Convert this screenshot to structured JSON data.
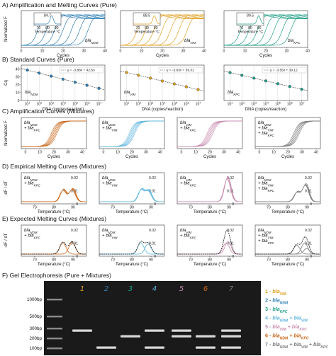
{
  "colors": {
    "ndm": "#2f7fb5",
    "vim": "#e0a020",
    "kpc": "#1f9e86",
    "ndm_vim": "#5fb6de",
    "vim_kpc": "#c78cb0",
    "ndm_kpc": "#c8661a",
    "all": "#7a7a7a",
    "fit": "#333333"
  },
  "sections": {
    "A": "A) Amplification and Melting Curves (Pure)",
    "B": "B) Standard Curves (Pure)",
    "C": "C) Amplification Curves (Mixtures)",
    "D": "D) Empirical Melting Curves (Mixtures)",
    "E": "E) Expected Melting Curves (Mixtures)",
    "F": "F) Gel Electrophoresis (Pure + Mixtures)"
  },
  "axes": {
    "cycles": "Cycles",
    "normalized_f": "Normalized F",
    "cq": "Cq",
    "dna": "DNA (copies/reaction)",
    "temperature": "Temperature (°C)",
    "dfdt": "-dF / dT",
    "inset_temperature": "Temperature °C"
  },
  "chart_data": [
    {
      "type": "line",
      "panel": "A",
      "target": "blaNDM",
      "gene": "bla",
      "sub": "NDM",
      "x": [
        0,
        10,
        20,
        30,
        40
      ],
      "xlim": [
        0,
        40
      ],
      "ylabel": "Normalized F",
      "xlabel": "Cycles",
      "melt_peak": 84.7,
      "inset_ticks": [
        70,
        80,
        90
      ],
      "curves": 7
    },
    {
      "type": "line",
      "panel": "A",
      "target": "blaVIM",
      "gene": "bla",
      "sub": "VIM",
      "x": [
        0,
        10,
        20,
        30,
        40
      ],
      "xlim": [
        0,
        40
      ],
      "xlabel": "Cycles",
      "melt_peak": 88.5,
      "inset_ticks": [
        70,
        80,
        90
      ],
      "curves": 7
    },
    {
      "type": "line",
      "panel": "A",
      "target": "blaKPC",
      "gene": "bla",
      "sub": "KPC",
      "x": [
        0,
        10,
        20,
        30,
        40
      ],
      "xlim": [
        0,
        40
      ],
      "xlabel": "Cycles",
      "melt_peak": 89.5,
      "inset_ticks": [
        70,
        80,
        90
      ],
      "curves": 7
    },
    {
      "type": "scatter",
      "panel": "B",
      "target": "blaNDM",
      "gene": "bla",
      "sub": "NDM",
      "equation": "y = -3.88x + 42.63",
      "slope": -3.88,
      "intercept": 42.63,
      "x_log10": [
        1,
        2,
        3,
        4,
        5,
        6,
        7
      ],
      "ylim": [
        0,
        40
      ],
      "yticks": [
        0,
        10,
        20,
        30,
        40
      ],
      "ylabel": "Cq",
      "xlabel": "DNA (copies/reaction)"
    },
    {
      "type": "scatter",
      "panel": "B",
      "target": "blaVIM",
      "gene": "bla",
      "sub": "VIM",
      "equation": "y = -3.63x + 39.31",
      "slope": -3.63,
      "intercept": 39.31,
      "x_log10": [
        1,
        2,
        3,
        4,
        5,
        6,
        7
      ],
      "xlabel": "DNA (copies/reaction)"
    },
    {
      "type": "scatter",
      "panel": "B",
      "target": "blaKPC",
      "gene": "bla",
      "sub": "KPC",
      "equation": "y = -3.55x + 39.12",
      "slope": -3.55,
      "intercept": 39.12,
      "x_log10": [
        1,
        2,
        3,
        4,
        5,
        6,
        7
      ],
      "xlabel": "DNA (copies/reaction)"
    },
    {
      "type": "line",
      "panel": "C",
      "labels": [
        [
          {
            "g": "bla",
            "s": "NDM"
          }
        ],
        [
          {
            "g": "+ bla",
            "s": "KPC"
          }
        ]
      ],
      "color": "ndm_kpc",
      "xticks": [
        0,
        10,
        20,
        30,
        40
      ],
      "ylabel": "Normalized F",
      "xlabel": "Cycles"
    },
    {
      "type": "line",
      "panel": "C",
      "labels": [
        [
          {
            "g": "bla",
            "s": "NDM"
          }
        ],
        [
          {
            "g": "+ bla",
            "s": "VIM"
          }
        ]
      ],
      "color": "ndm_vim",
      "xticks": [
        0,
        10,
        20,
        30,
        40
      ],
      "xlabel": "Cycles"
    },
    {
      "type": "line",
      "panel": "C",
      "labels": [
        [
          {
            "g": "bla",
            "s": "VIM"
          }
        ],
        [
          {
            "g": "+ bla",
            "s": "KPC"
          }
        ]
      ],
      "color": "vim_kpc",
      "xticks": [
        0,
        10,
        20,
        30,
        40
      ],
      "xlabel": "Cycles"
    },
    {
      "type": "line",
      "panel": "C",
      "labels": [
        [
          {
            "g": "bla",
            "s": "NDM"
          }
        ],
        [
          {
            "g": "+ bla",
            "s": "VIM"
          }
        ],
        [
          {
            "g": "+ bla",
            "s": "KPC"
          }
        ]
      ],
      "color": "all",
      "xticks": [
        0,
        10,
        20,
        30,
        40
      ],
      "xlabel": "Cycles"
    },
    {
      "type": "line",
      "panel": "D",
      "labels": [
        [
          {
            "g": "bla",
            "s": "NDM"
          }
        ],
        [
          {
            "g": "+ bla",
            "s": "KPC"
          }
        ]
      ],
      "color": "ndm_kpc",
      "xticks": [
        70,
        80,
        90
      ],
      "yticks": [
        0,
        0.01,
        0.02
      ],
      "ylabel": "-dF / dT",
      "xlabel": "Temperature (°C)"
    },
    {
      "type": "line",
      "panel": "D",
      "labels": [
        [
          {
            "g": "bla",
            "s": "NDM"
          }
        ],
        [
          {
            "g": "+ bla",
            "s": "VIM"
          }
        ]
      ],
      "color": "ndm_vim",
      "xticks": [
        70,
        80,
        90
      ],
      "yticks": [
        0,
        0.01,
        0.02
      ],
      "xlabel": "Temperature (°C)"
    },
    {
      "type": "line",
      "panel": "D",
      "labels": [
        [
          {
            "g": "bla",
            "s": "VIM"
          }
        ],
        [
          {
            "g": "+ bla",
            "s": "KPC"
          }
        ]
      ],
      "color": "vim_kpc",
      "xticks": [
        70,
        80,
        90
      ],
      "yticks": [
        0,
        0.01,
        0.02
      ],
      "xlabel": "Temperature (°C)"
    },
    {
      "type": "line",
      "panel": "D",
      "labels": [
        [
          {
            "g": "bla",
            "s": "NDM"
          }
        ],
        [
          {
            "g": "+ bla",
            "s": "VIM"
          }
        ],
        [
          {
            "g": "+ bla",
            "s": "KPC"
          }
        ]
      ],
      "color": "all",
      "xticks": [
        70,
        80,
        90
      ],
      "yticks": [
        0,
        0.01,
        0.02
      ],
      "xlabel": "Temperature (°C)"
    },
    {
      "type": "line",
      "panel": "E",
      "labels": [
        [
          {
            "g": "bla",
            "s": "NDM"
          }
        ],
        [
          {
            "g": "+ bla",
            "s": "KPC"
          }
        ]
      ],
      "color": "ndm_kpc",
      "xticks": [
        70,
        80,
        90
      ],
      "yticks": [
        0,
        0.01,
        0.02
      ],
      "ylabel": "-dF / dT",
      "xlabel": "Temperature (°C)"
    },
    {
      "type": "line",
      "panel": "E",
      "labels": [
        [
          {
            "g": "bla",
            "s": "NDM"
          }
        ],
        [
          {
            "g": "+ bla",
            "s": "VIM"
          }
        ]
      ],
      "color": "ndm_vim",
      "xticks": [
        70,
        80,
        90
      ],
      "yticks": [
        0,
        0.01,
        0.02
      ],
      "xlabel": "Temperature (°C)"
    },
    {
      "type": "line",
      "panel": "E",
      "labels": [
        [
          {
            "g": "bla",
            "s": "VIM"
          }
        ],
        [
          {
            "g": "+ bla",
            "s": "KPC"
          }
        ]
      ],
      "color": "vim_kpc",
      "xticks": [
        70,
        80,
        90
      ],
      "yticks": [
        0,
        0.01,
        0.02
      ],
      "xlabel": "Temperature (°C)"
    },
    {
      "type": "line",
      "panel": "E",
      "labels": [
        [
          {
            "g": "bla",
            "s": "NDM"
          }
        ],
        [
          {
            "g": "+ bla",
            "s": "VIM"
          }
        ],
        [
          {
            "g": "+ bla",
            "s": "KPC"
          }
        ]
      ],
      "color": "all",
      "xticks": [
        70,
        80,
        90
      ],
      "yticks": [
        0,
        0.01,
        0.02
      ],
      "xlabel": "Temperature (°C)"
    }
  ],
  "gel": {
    "ladder": [
      "1000bp",
      "500bp",
      "300bp",
      "200bp",
      "100bp"
    ],
    "lanes": [
      "1",
      "2",
      "3",
      "4",
      "5",
      "6",
      "7"
    ],
    "lane_colors": [
      "vim",
      "ndm",
      "kpc",
      "ndm_vim",
      "vim_kpc",
      "ndm_kpc",
      "all"
    ],
    "legend": [
      {
        "num": "1 - ",
        "parts": [
          {
            "g": "bla",
            "s": "VIM"
          }
        ],
        "color": "vim"
      },
      {
        "num": "2 - ",
        "parts": [
          {
            "g": "bla",
            "s": "NDM"
          }
        ],
        "color": "ndm"
      },
      {
        "num": "3 - ",
        "parts": [
          {
            "g": "bla",
            "s": "KPC"
          }
        ],
        "color": "kpc"
      },
      {
        "num": "4 - ",
        "parts": [
          {
            "g": "bla",
            "s": "NDM"
          },
          {
            "g": " + bla",
            "s": "VIM"
          }
        ],
        "color": "ndm_vim"
      },
      {
        "num": "5 - ",
        "parts": [
          {
            "g": "bla",
            "s": "VIM"
          },
          {
            "g": " + bla",
            "s": "KPC"
          }
        ],
        "color": "vim_kpc"
      },
      {
        "num": "6 - ",
        "parts": [
          {
            "g": "bla",
            "s": "NDM"
          },
          {
            "g": " + bla",
            "s": "KPC"
          }
        ],
        "color": "ndm_kpc"
      },
      {
        "num": "7 - ",
        "parts": [
          {
            "g": "bla",
            "s": "NDM"
          },
          {
            "g": " + bla",
            "s": "VIM"
          },
          {
            "g": " + bla",
            "s": "KPC"
          }
        ],
        "color": "all"
      }
    ]
  }
}
